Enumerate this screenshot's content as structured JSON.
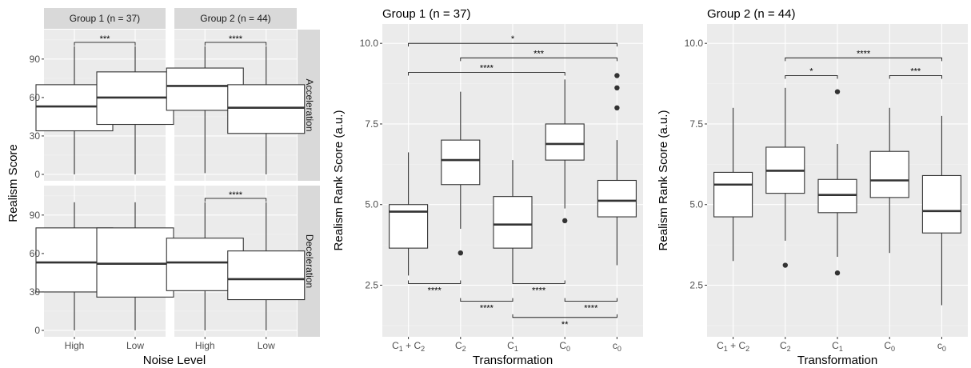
{
  "chart_data": [
    {
      "type": "boxplot-faceted",
      "ylabel": "Realism Score",
      "xlabel": "Noise Level",
      "column_facets": [
        "Group 1 (n = 37)",
        "Group 2 (n = 44)"
      ],
      "row_facets": [
        "Acceleration",
        "Deceleration"
      ],
      "categories": [
        "High",
        "Low"
      ],
      "ylim": [
        -5,
        113
      ],
      "yticks": [
        "0",
        "30",
        "60",
        "90"
      ],
      "facets": [
        {
          "col": 0,
          "row": 0,
          "boxes": [
            {
              "category": "High",
              "min": 0,
              "q1": 34,
              "median": 53,
              "q3": 70,
              "max": 100
            },
            {
              "category": "Low",
              "min": 0,
              "q1": 39,
              "median": 60,
              "q3": 80,
              "max": 100
            }
          ],
          "significance": [
            {
              "from": 0,
              "to": 1,
              "label": "***"
            }
          ]
        },
        {
          "col": 1,
          "row": 0,
          "boxes": [
            {
              "category": "High",
              "min": 1,
              "q1": 50,
              "median": 69,
              "q3": 83,
              "max": 100
            },
            {
              "category": "Low",
              "min": 0,
              "q1": 32,
              "median": 52,
              "q3": 70,
              "max": 100
            }
          ],
          "significance": [
            {
              "from": 0,
              "to": 1,
              "label": "****"
            }
          ]
        },
        {
          "col": 0,
          "row": 1,
          "boxes": [
            {
              "category": "High",
              "min": 0,
              "q1": 30,
              "median": 53,
              "q3": 80,
              "max": 100
            },
            {
              "category": "Low",
              "min": 0,
              "q1": 26,
              "median": 52,
              "q3": 80,
              "max": 100
            }
          ],
          "significance": []
        },
        {
          "col": 1,
          "row": 1,
          "boxes": [
            {
              "category": "High",
              "min": 0,
              "q1": 31,
              "median": 53,
              "q3": 72,
              "max": 100
            },
            {
              "category": "Low",
              "min": 0,
              "q1": 24,
              "median": 40,
              "q3": 62,
              "max": 100
            }
          ],
          "significance": [
            {
              "from": 0,
              "to": 1,
              "label": "****"
            }
          ]
        }
      ]
    },
    {
      "type": "boxplot",
      "title": "Group 1 (n = 37)",
      "xlabel": "Transformation",
      "ylabel": "Realism Rank Score (a.u.)",
      "categories": [
        "C1+C2",
        "C2",
        "C1",
        "C0",
        "c0"
      ],
      "ylim": [
        0.9,
        10.6
      ],
      "yticks": [
        "2.5",
        "5.0",
        "7.5",
        "10.0"
      ],
      "boxes": [
        {
          "category": "C1+C2",
          "min": 2.8,
          "q1": 3.65,
          "median": 4.78,
          "q3": 5.0,
          "max": 6.62,
          "outliers": []
        },
        {
          "category": "C2",
          "min": 4.25,
          "q1": 5.62,
          "median": 6.38,
          "q3": 7.0,
          "max": 8.5,
          "outliers": [
            3.5
          ]
        },
        {
          "category": "C1",
          "min": 2.62,
          "q1": 3.65,
          "median": 4.38,
          "q3": 5.25,
          "max": 6.38,
          "outliers": []
        },
        {
          "category": "C0",
          "min": 4.88,
          "q1": 6.38,
          "median": 6.88,
          "q3": 7.5,
          "max": 8.88,
          "outliers": [
            4.5
          ]
        },
        {
          "category": "c0",
          "min": 3.12,
          "q1": 4.62,
          "median": 5.12,
          "q3": 5.75,
          "max": 7.0,
          "outliers": [
            8.0,
            8.62,
            9.0
          ]
        }
      ],
      "significance": [
        {
          "from": 0,
          "to": 4,
          "label": "*",
          "y": 10.0,
          "side": "top"
        },
        {
          "from": 1,
          "to": 4,
          "label": "***",
          "y": 9.55,
          "side": "top"
        },
        {
          "from": 0,
          "to": 3,
          "label": "****",
          "y": 9.1,
          "side": "top"
        },
        {
          "from": 0,
          "to": 1,
          "label": "****",
          "y": 2.55,
          "side": "bottom"
        },
        {
          "from": 1,
          "to": 2,
          "label": "****",
          "y": 2.0,
          "side": "bottom"
        },
        {
          "from": 2,
          "to": 3,
          "label": "****",
          "y": 2.55,
          "side": "bottom"
        },
        {
          "from": 3,
          "to": 4,
          "label": "****",
          "y": 2.0,
          "side": "bottom"
        },
        {
          "from": 2,
          "to": 4,
          "label": "**",
          "y": 1.5,
          "side": "bottom"
        }
      ]
    },
    {
      "type": "boxplot",
      "title": "Group 2 (n = 44)",
      "xlabel": "Transformation",
      "ylabel": "Realism Rank Score (a.u.)",
      "categories": [
        "C1+C2",
        "C2",
        "C1",
        "C0",
        "c0"
      ],
      "ylim": [
        0.9,
        10.6
      ],
      "yticks": [
        "2.5",
        "5.0",
        "7.5",
        "10.0"
      ],
      "boxes": [
        {
          "category": "C1+C2",
          "min": 3.25,
          "q1": 4.62,
          "median": 5.62,
          "q3": 6.0,
          "max": 8.0,
          "outliers": []
        },
        {
          "category": "C2",
          "min": 3.88,
          "q1": 5.35,
          "median": 6.05,
          "q3": 6.78,
          "max": 8.62,
          "outliers": [
            3.12
          ]
        },
        {
          "category": "C1",
          "min": 3.38,
          "q1": 4.75,
          "median": 5.3,
          "q3": 5.78,
          "max": 6.88,
          "outliers": [
            2.88,
            8.5
          ]
        },
        {
          "category": "C0",
          "min": 3.5,
          "q1": 5.22,
          "median": 5.75,
          "q3": 6.65,
          "max": 8.0,
          "outliers": []
        },
        {
          "category": "c0",
          "min": 1.88,
          "q1": 4.12,
          "median": 4.8,
          "q3": 5.9,
          "max": 7.75,
          "outliers": []
        }
      ],
      "significance": [
        {
          "from": 1,
          "to": 4,
          "label": "****",
          "y": 9.55,
          "side": "top"
        },
        {
          "from": 1,
          "to": 2,
          "label": "*",
          "y": 9.0,
          "side": "top"
        },
        {
          "from": 3,
          "to": 4,
          "label": "***",
          "y": 9.0,
          "side": "top"
        }
      ]
    }
  ]
}
